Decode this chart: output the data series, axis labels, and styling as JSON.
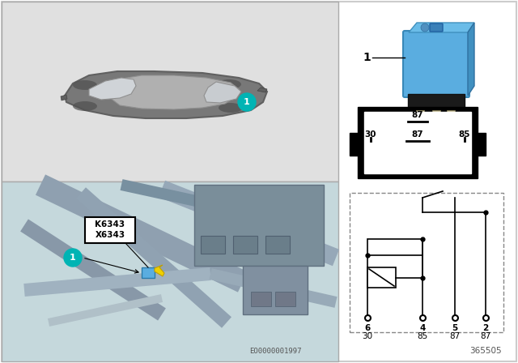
{
  "bg_color": "#ffffff",
  "car_panel_bg": "#e0e0e0",
  "engine_panel_bg": "#c5d8dc",
  "relay_blue": "#5aade0",
  "relay_blue2": "#4a9fd0",
  "relay_dark": "#1a1a1a",
  "relay_metal": "#b8b8aa",
  "teal_circle": "#00b4b4",
  "yellow_color": "#f0d000",
  "label_box_text": [
    "K6343",
    "X6343"
  ],
  "schematic_pins": [
    "6",
    "4",
    "5",
    "2"
  ],
  "schematic_labels": [
    "30",
    "85",
    "87",
    "87"
  ],
  "part_number": "365505",
  "image_code": "EO0000001997",
  "car_body_color": "#787878",
  "car_body_dark": "#606060",
  "car_roof_color": "#b0b0b0",
  "car_glass_color": "#d0d4d8",
  "car_windshield": "#c8ccd0",
  "border_color": "#cccccc",
  "line_color": "#888888",
  "panel_border": "#aaaaaa",
  "engine_metal1": "#9aabb8",
  "engine_metal2": "#8898a8",
  "engine_pipe1": "#aabbc8",
  "engine_pipe2": "#98aab8"
}
